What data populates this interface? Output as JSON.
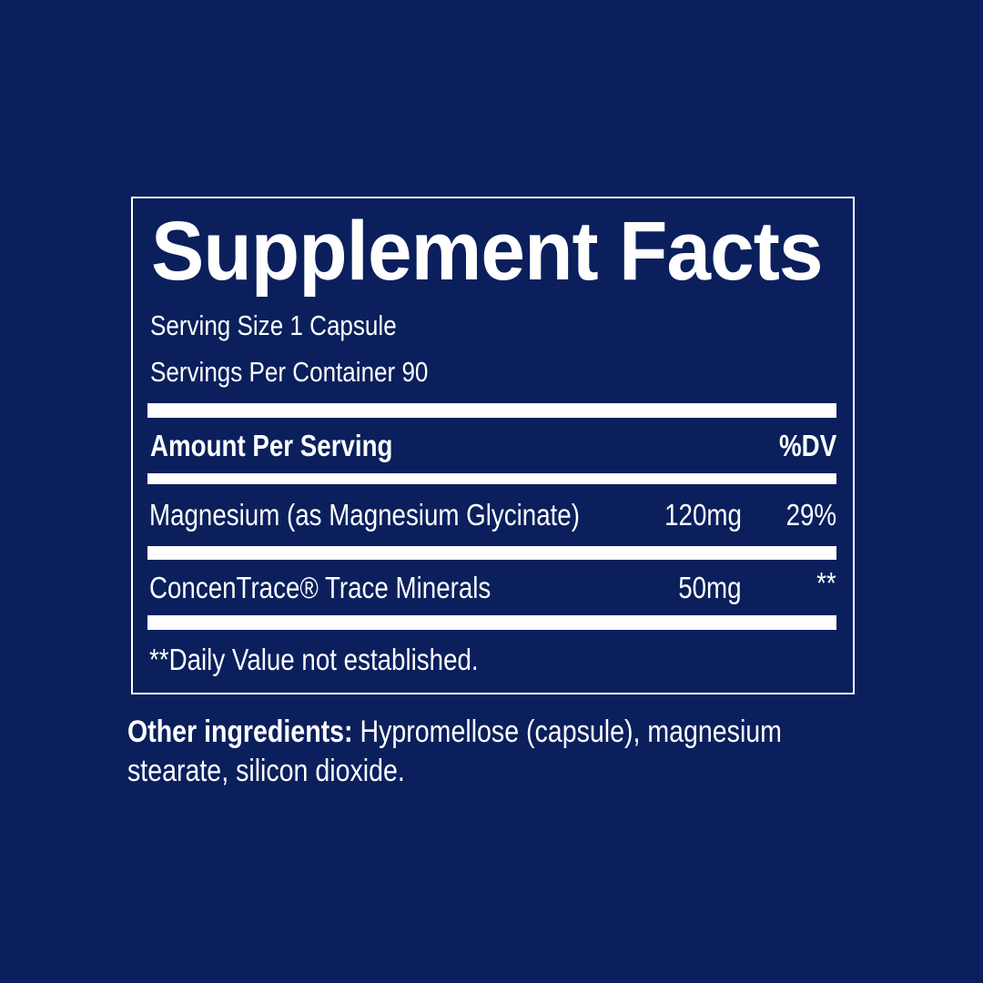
{
  "label": {
    "title": "Supplement Facts",
    "serving_size": "Serving Size 1 Capsule",
    "servings_per_container": "Servings Per Container 90",
    "header": {
      "amount": "Amount Per Serving",
      "dv": "%DV"
    },
    "rows": [
      {
        "name": "Magnesium (as Magnesium Glycinate)",
        "amount": "120mg",
        "dv": "29%"
      },
      {
        "name": "ConcenTrace® Trace Minerals",
        "amount": "50mg",
        "dv": "**"
      }
    ],
    "footnote": "**Daily Value not established."
  },
  "other_ingredients": {
    "label": "Other ingredients:",
    "line1": " Hypromellose (capsule), magnesium",
    "line2": "stearate, silicon dioxide."
  },
  "colors": {
    "background": "#0a1f5c",
    "text": "#ffffff"
  }
}
